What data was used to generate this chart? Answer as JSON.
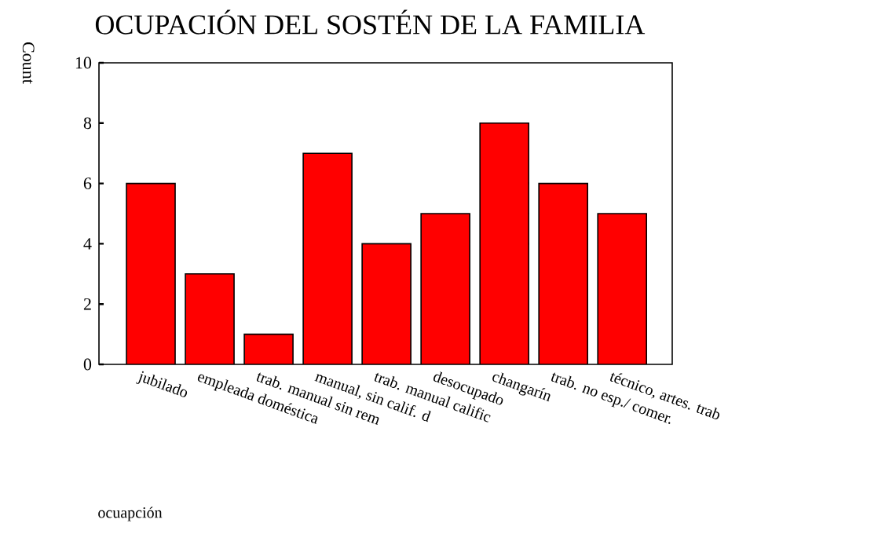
{
  "chart_data": {
    "type": "bar",
    "title": "OCUPACIÓN DEL SOSTÉN DE LA FAMILIA",
    "annotations": [
      "ocuapción"
    ],
    "ylabel": "Count",
    "categories": [
      "jubilado",
      "empleada doméstica",
      "trab. manual sin rem",
      "manual, sin calif. d",
      "trab. manual calific",
      "desocupado",
      "changarín",
      "trab. no esp./ comer.",
      "técnico, artes. trab"
    ],
    "values": [
      6,
      3,
      1,
      7,
      4,
      5,
      8,
      6,
      5
    ],
    "color": "#ff0000",
    "ylim": [
      0,
      10
    ],
    "yticks": [
      0,
      2,
      4,
      6,
      8,
      10
    ],
    "grid": false
  }
}
